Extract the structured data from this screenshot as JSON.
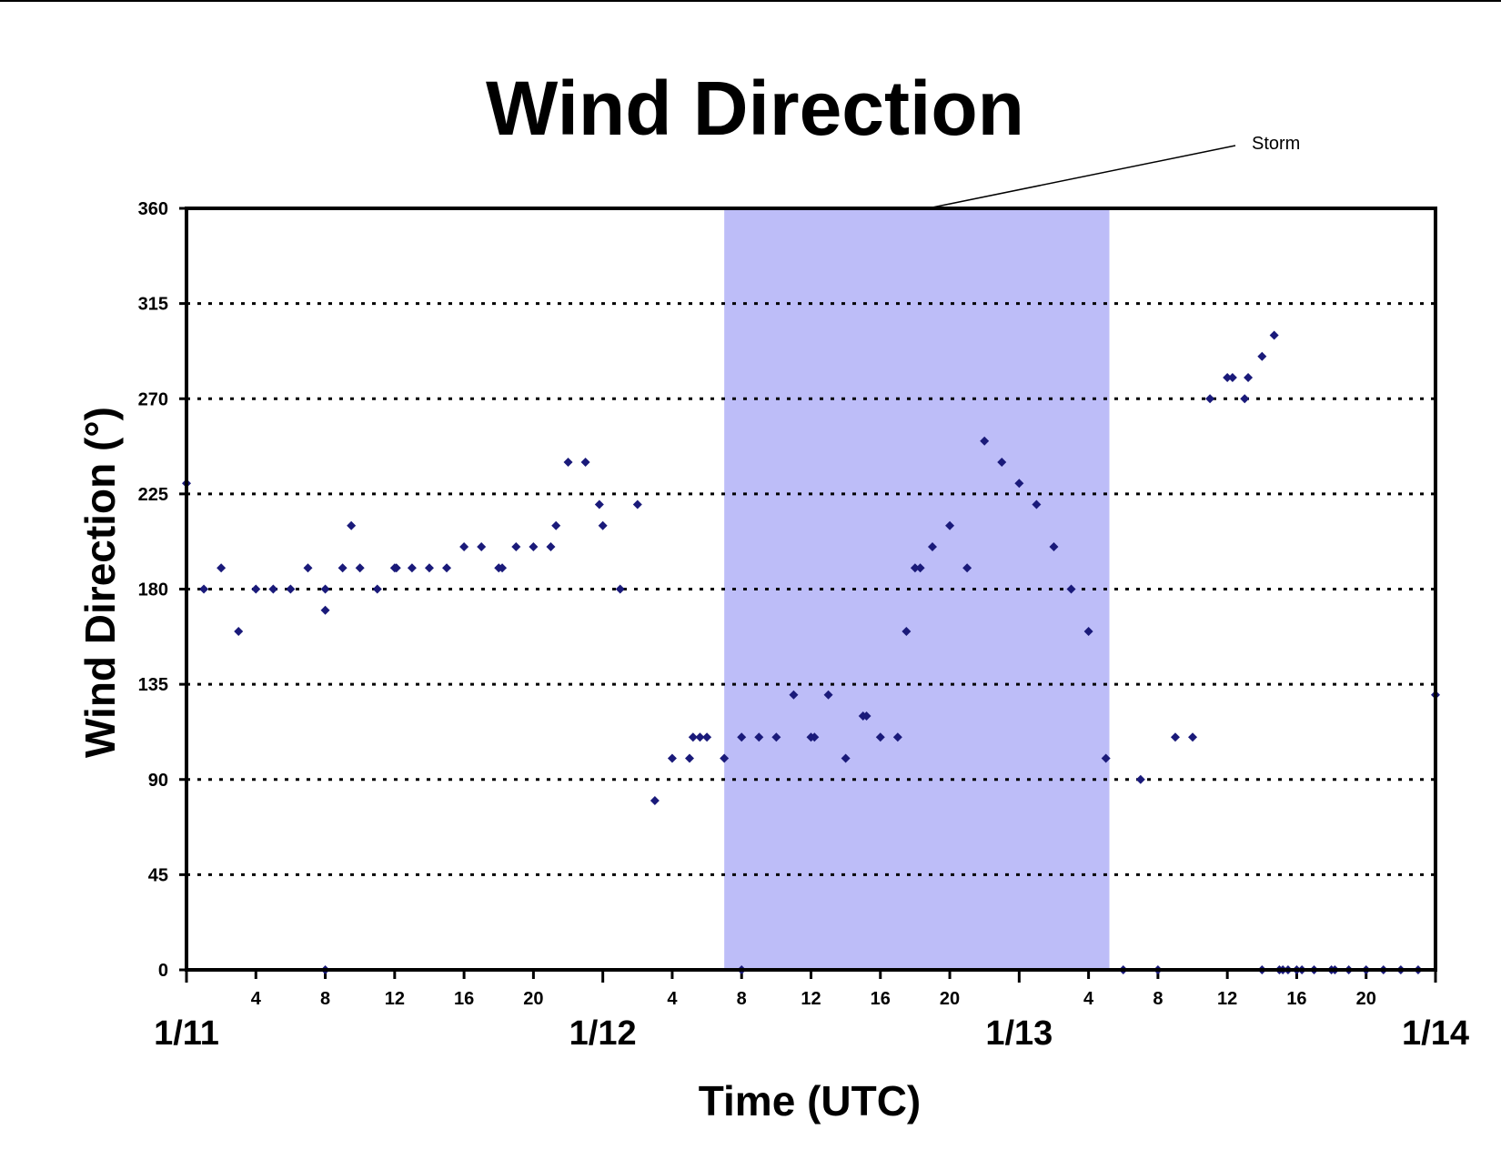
{
  "chart_data": {
    "type": "scatter",
    "title": "Wind Direction",
    "xlabel": "Time (UTC)",
    "ylabel": "Wind Direction (°)",
    "ylim": [
      0,
      360
    ],
    "yticks": [
      0,
      45,
      90,
      135,
      180,
      225,
      270,
      315,
      360
    ],
    "xlim_hours": [
      0,
      72
    ],
    "hour_ticks": [
      {
        "hour": 4,
        "label": "4"
      },
      {
        "hour": 8,
        "label": "8"
      },
      {
        "hour": 12,
        "label": "12"
      },
      {
        "hour": 16,
        "label": "16"
      },
      {
        "hour": 20,
        "label": "20"
      },
      {
        "hour": 28,
        "label": "4"
      },
      {
        "hour": 32,
        "label": "8"
      },
      {
        "hour": 36,
        "label": "12"
      },
      {
        "hour": 40,
        "label": "16"
      },
      {
        "hour": 44,
        "label": "20"
      },
      {
        "hour": 52,
        "label": "4"
      },
      {
        "hour": 56,
        "label": "8"
      },
      {
        "hour": 60,
        "label": "12"
      },
      {
        "hour": 64,
        "label": "16"
      },
      {
        "hour": 68,
        "label": "20"
      }
    ],
    "day_ticks": [
      {
        "hour": 0,
        "label": "1/11"
      },
      {
        "hour": 24,
        "label": "1/12"
      },
      {
        "hour": 48,
        "label": "1/13"
      },
      {
        "hour": 72,
        "label": "1/14"
      }
    ],
    "grid": "horizontal dotted",
    "shaded_region": {
      "label": "Storm",
      "start_hour": 31,
      "end_hour": 53.2,
      "color": "#bdbdf8"
    },
    "marker_color": "#1a1a7a",
    "points": [
      [
        0,
        230
      ],
      [
        1,
        180
      ],
      [
        2,
        190
      ],
      [
        3,
        160
      ],
      [
        4,
        180
      ],
      [
        5,
        180
      ],
      [
        6,
        180
      ],
      [
        7,
        190
      ],
      [
        8,
        170
      ],
      [
        8,
        180
      ],
      [
        8,
        0
      ],
      [
        9,
        190
      ],
      [
        9.5,
        210
      ],
      [
        10,
        190
      ],
      [
        11,
        180
      ],
      [
        12,
        190
      ],
      [
        12.1,
        190
      ],
      [
        13,
        190
      ],
      [
        14,
        190
      ],
      [
        15,
        190
      ],
      [
        16,
        200
      ],
      [
        17,
        200
      ],
      [
        18,
        190
      ],
      [
        18.2,
        190
      ],
      [
        19,
        200
      ],
      [
        20,
        200
      ],
      [
        21,
        200
      ],
      [
        21.3,
        210
      ],
      [
        22,
        240
      ],
      [
        23,
        240
      ],
      [
        23.8,
        220
      ],
      [
        24,
        210
      ],
      [
        25,
        180
      ],
      [
        26,
        220
      ],
      [
        27,
        80
      ],
      [
        28,
        100
      ],
      [
        29,
        100
      ],
      [
        29.2,
        110
      ],
      [
        29.6,
        110
      ],
      [
        30,
        110
      ],
      [
        31,
        100
      ],
      [
        32,
        110
      ],
      [
        32,
        0
      ],
      [
        33,
        110
      ],
      [
        34,
        110
      ],
      [
        35,
        130
      ],
      [
        36,
        110
      ],
      [
        36.2,
        110
      ],
      [
        37,
        130
      ],
      [
        38,
        100
      ],
      [
        39,
        120
      ],
      [
        39.2,
        120
      ],
      [
        40,
        110
      ],
      [
        41,
        110
      ],
      [
        41.5,
        160
      ],
      [
        42,
        190
      ],
      [
        42.3,
        190
      ],
      [
        43,
        200
      ],
      [
        44,
        210
      ],
      [
        45,
        190
      ],
      [
        46,
        250
      ],
      [
        47,
        240
      ],
      [
        48,
        230
      ],
      [
        49,
        220
      ],
      [
        50,
        200
      ],
      [
        51,
        180
      ],
      [
        52,
        160
      ],
      [
        53,
        100
      ],
      [
        54,
        0
      ],
      [
        55,
        90
      ],
      [
        56,
        0
      ],
      [
        57,
        110
      ],
      [
        58,
        110
      ],
      [
        59,
        270
      ],
      [
        60,
        280
      ],
      [
        60.3,
        280
      ],
      [
        61,
        270
      ],
      [
        61.2,
        280
      ],
      [
        62,
        290
      ],
      [
        62.7,
        300
      ],
      [
        62,
        0
      ],
      [
        63,
        0
      ],
      [
        63.2,
        0
      ],
      [
        63.5,
        0
      ],
      [
        64,
        0
      ],
      [
        64.3,
        0
      ],
      [
        65,
        0
      ],
      [
        66,
        0
      ],
      [
        66.2,
        0
      ],
      [
        67,
        0
      ],
      [
        68,
        0
      ],
      [
        69,
        0
      ],
      [
        70,
        0
      ],
      [
        71,
        0
      ],
      [
        72,
        130
      ]
    ]
  }
}
